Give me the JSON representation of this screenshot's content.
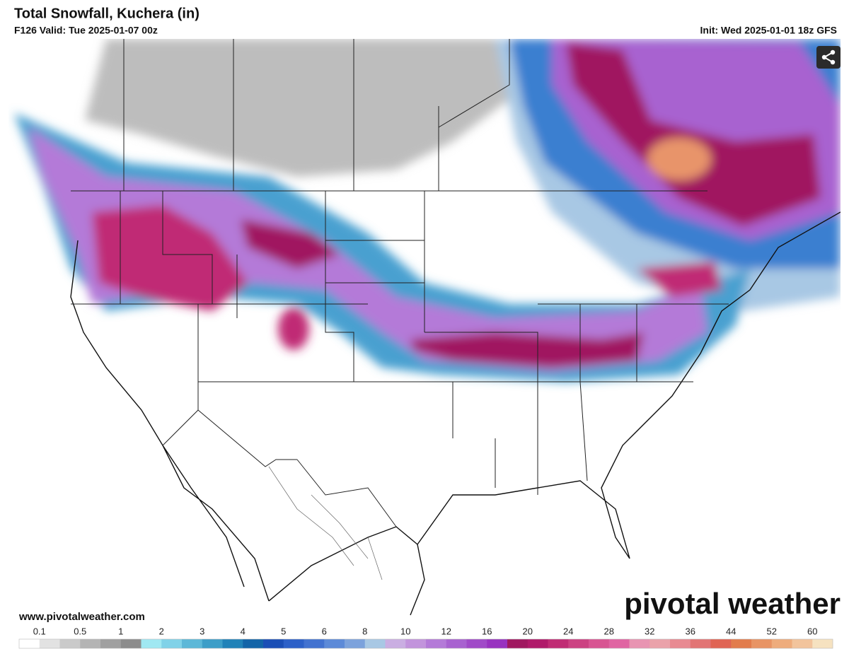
{
  "header": {
    "title": "Total Snowfall, Kuchera (in)",
    "valid": "F126 Valid: Tue 2025-01-07 00z",
    "init": "Init: Wed 2025-01-01 18z GFS"
  },
  "footer": {
    "url": "www.pivotalweather.com",
    "brand": "pivotal weather"
  },
  "colorbar": {
    "labels": [
      "0.1",
      "0.5",
      "1",
      "2",
      "3",
      "4",
      "5",
      "6",
      "8",
      "10",
      "12",
      "16",
      "20",
      "24",
      "28",
      "32",
      "36",
      "44",
      "52",
      "60"
    ],
    "colors": [
      "#ffffff",
      "#e2e2e2",
      "#cacaca",
      "#b4b4b4",
      "#a0a0a0",
      "#8c8c8c",
      "#a0e8f2",
      "#80d2e8",
      "#5cb8d8",
      "#3c9ec8",
      "#2082b8",
      "#1264a8",
      "#1a4eb6",
      "#2c60c8",
      "#4272d0",
      "#5c8ad8",
      "#7ca2dc",
      "#a8c8e4",
      "#caaee2",
      "#c294dc",
      "#b47ad8",
      "#a862d0",
      "#a04ac8",
      "#9832c0",
      "#a01860",
      "#b01a6a",
      "#c02c74",
      "#cc4282",
      "#d85492",
      "#e064a2",
      "#e894b2",
      "#eaa2aa",
      "#e88a92",
      "#e27474",
      "#e06454",
      "#e27c4c",
      "#e89464",
      "#eeac7c",
      "#f2c49c",
      "#f6e2c0"
    ]
  }
}
